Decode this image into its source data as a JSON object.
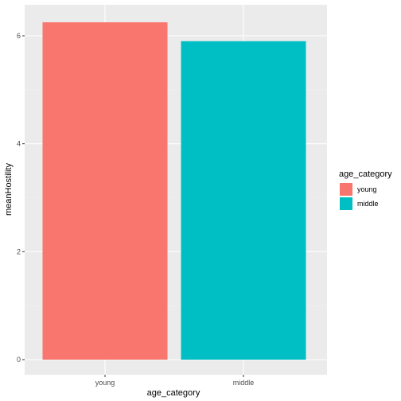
{
  "chart_data": {
    "type": "bar",
    "categories": [
      "young",
      "middle"
    ],
    "values": [
      6.25,
      5.9
    ],
    "xlabel": "age_category",
    "ylabel": "meanHostility",
    "ylim": [
      0,
      6.56
    ],
    "yticks": [
      0,
      2,
      4,
      6
    ],
    "grid": true,
    "legend": {
      "title": "age_category",
      "placement": "right",
      "entries": [
        "young",
        "middle"
      ]
    },
    "colors": {
      "young": "#F8766D",
      "middle": "#00BFC4",
      "panel": "#EBEBEB",
      "grid_major": "#FFFFFF",
      "grid_minor": "#F2F2F2"
    }
  }
}
